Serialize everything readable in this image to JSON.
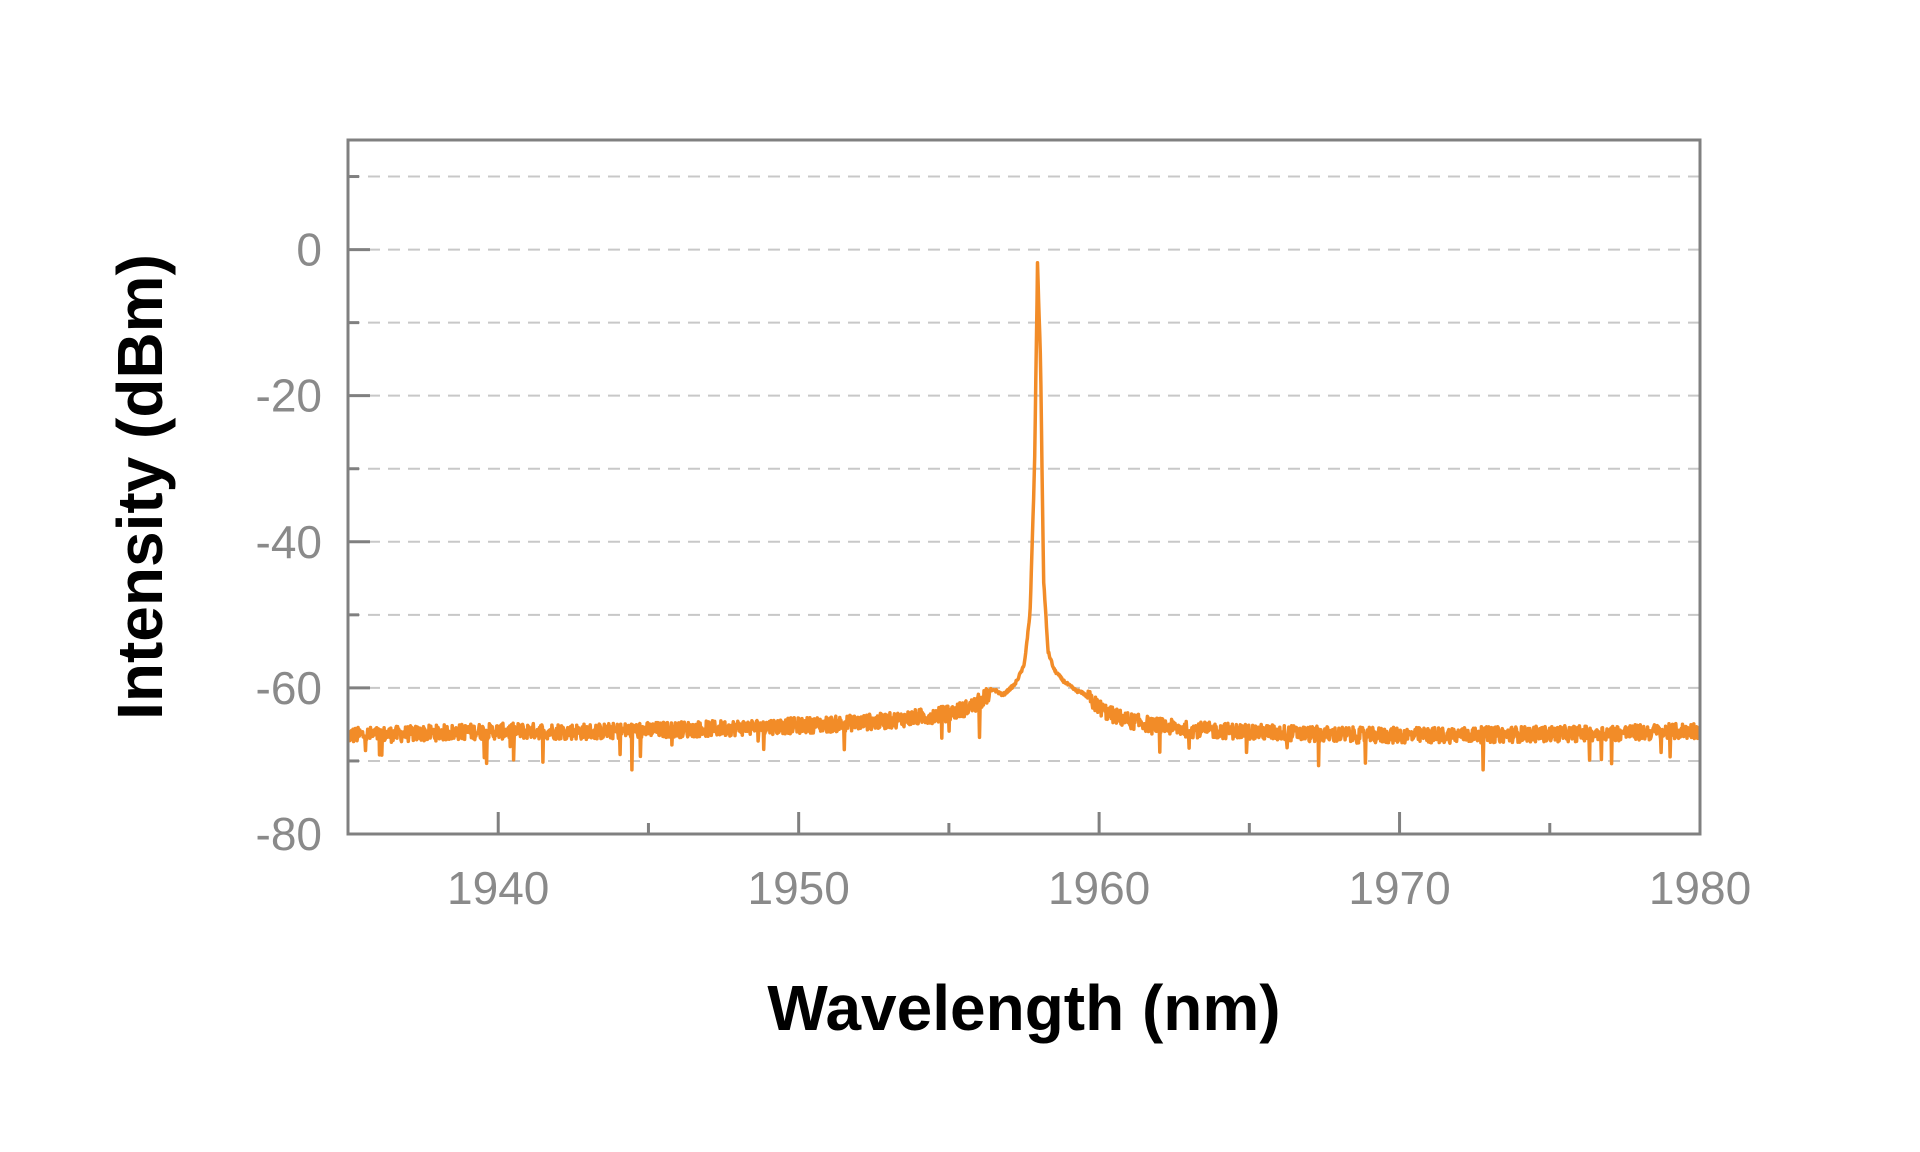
{
  "chart_data": {
    "type": "line",
    "title": "",
    "xlabel": "Wavelength (nm)",
    "ylabel": "Intensity (dBm)",
    "xlim": [
      1935,
      1980
    ],
    "ylim": [
      -80,
      15
    ],
    "x_ticks": [
      1940,
      1950,
      1960,
      1970,
      1980
    ],
    "x_tick_labels": [
      "1940",
      "1950",
      "1960",
      "1970",
      "1980"
    ],
    "y_ticks": [
      -80,
      -60,
      -40,
      -20,
      0
    ],
    "y_tick_labels": [
      "-80",
      "-60",
      "-40",
      "-20",
      "0"
    ],
    "y_gridlines": [
      -70,
      -60,
      -50,
      -40,
      -30,
      -20,
      -10,
      0,
      10
    ],
    "grid": "horizontal dashed",
    "legend": "none",
    "colors": {
      "line": "#f28c28",
      "frame": "#808080",
      "grid": "#c8c8c8",
      "tick_text": "#8a8a8a"
    },
    "series": [
      {
        "x": [
          1935,
          1937,
          1939,
          1941,
          1943,
          1945,
          1947,
          1949,
          1951,
          1953,
          1954,
          1955,
          1955.8,
          1956.3,
          1956.5,
          1956.8,
          1957.2,
          1957.5,
          1957.7,
          1957.85,
          1957.95,
          1958.05,
          1958.15,
          1958.3,
          1958.5,
          1958.8,
          1959.2,
          1959.5,
          1959.8,
          1960.3,
          1961,
          1962,
          1963,
          1965,
          1967,
          1969,
          1971,
          1973,
          1975,
          1977,
          1979,
          1980
        ],
        "y": [
          -66.5,
          -66.3,
          -66,
          -65.9,
          -66,
          -65.8,
          -65.6,
          -65.3,
          -65,
          -64.5,
          -64,
          -63.5,
          -62.5,
          -61,
          -60.2,
          -61,
          -59.5,
          -57,
          -50,
          -30,
          -2,
          -15,
          -45,
          -55,
          -57.5,
          -59,
          -60.3,
          -60.8,
          -62,
          -63.5,
          -64.5,
          -65.2,
          -65.7,
          -66,
          -66.3,
          -66.5,
          -66.5,
          -66.4,
          -66.3,
          -66.2,
          -66,
          -65.8
        ]
      }
    ]
  }
}
